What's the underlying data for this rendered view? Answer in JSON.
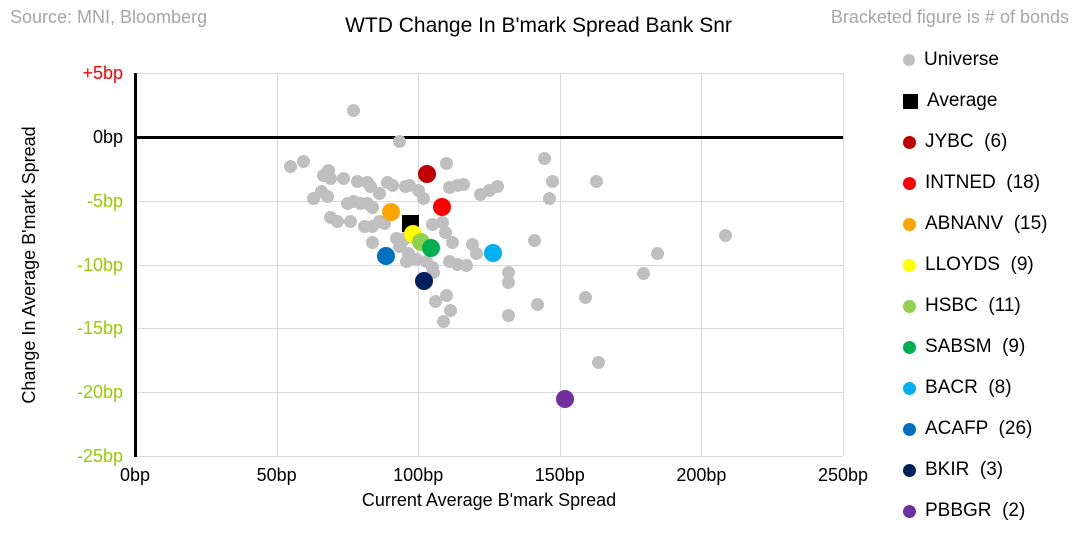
{
  "header": {
    "source": "Source: MNI, Bloomberg",
    "note": "Bracketed figure is # of bonds"
  },
  "chart_data": {
    "type": "scatter",
    "title": "WTD Change In B'mark Spread Bank Snr",
    "xlabel": "Current Average B'mark Spread",
    "ylabel": "Change In Average B'mark Spread",
    "xlim": [
      0,
      250
    ],
    "ylim": [
      -25,
      5
    ],
    "grid": true,
    "legend_position": "right",
    "x_ticks": [
      {
        "value": 0,
        "label": "0bp"
      },
      {
        "value": 50,
        "label": "50bp"
      },
      {
        "value": 100,
        "label": "100bp"
      },
      {
        "value": 150,
        "label": "150bp"
      },
      {
        "value": 200,
        "label": "200bp"
      },
      {
        "value": 250,
        "label": "250bp"
      }
    ],
    "y_ticks": [
      {
        "value": 5,
        "label": "+5bp",
        "color": "#FF0000"
      },
      {
        "value": 0,
        "label": "0bp",
        "color": "#000000"
      },
      {
        "value": -5,
        "label": "-5bp",
        "color": "#99CC00"
      },
      {
        "value": -10,
        "label": "-10bp",
        "color": "#99CC00"
      },
      {
        "value": -15,
        "label": "-15bp",
        "color": "#99CC00"
      },
      {
        "value": -20,
        "label": "-20bp",
        "color": "#99CC00"
      },
      {
        "value": -25,
        "label": "-25bp",
        "color": "#99CC00"
      }
    ],
    "units": "bp",
    "series": [
      {
        "name": "Universe",
        "label": "Universe",
        "color": "#BFBFBF",
        "marker": "circle",
        "size": 13,
        "legend_size": 12,
        "points": [
          [
            77,
            2.1
          ],
          [
            93.5,
            -0.4
          ],
          [
            55,
            -2.3
          ],
          [
            59.5,
            -1.9
          ],
          [
            66.5,
            -3.0
          ],
          [
            68.5,
            -2.6
          ],
          [
            69,
            -3.3
          ],
          [
            73.5,
            -3.3
          ],
          [
            63,
            -4.8
          ],
          [
            66,
            -4.3
          ],
          [
            68,
            -4.7
          ],
          [
            78.5,
            -3.5
          ],
          [
            82,
            -3.6
          ],
          [
            83,
            -3.9
          ],
          [
            86.5,
            -4.4
          ],
          [
            89,
            -3.6
          ],
          [
            91,
            -3.8
          ],
          [
            95.5,
            -3.9
          ],
          [
            97,
            -3.8
          ],
          [
            100,
            -4.2
          ],
          [
            75,
            -5.2
          ],
          [
            77,
            -5.1
          ],
          [
            79.5,
            -5.2
          ],
          [
            82,
            -5.2
          ],
          [
            84,
            -5.5
          ],
          [
            69,
            -6.3
          ],
          [
            71.5,
            -6.6
          ],
          [
            76,
            -6.6
          ],
          [
            81,
            -7.0
          ],
          [
            84,
            -7.0
          ],
          [
            86.5,
            -6.6
          ],
          [
            88,
            -6.8
          ],
          [
            84,
            -8.3
          ],
          [
            92.5,
            -8.0
          ],
          [
            93.5,
            -8.6
          ],
          [
            95.5,
            -8.0
          ],
          [
            98,
            -7.7
          ],
          [
            94,
            -8.3
          ],
          [
            96.5,
            -9.1
          ],
          [
            96,
            -9.8
          ],
          [
            99.5,
            -9.6
          ],
          [
            110,
            -2.1
          ],
          [
            111,
            -4.0
          ],
          [
            114,
            -3.8
          ],
          [
            116,
            -3.7
          ],
          [
            122,
            -4.5
          ],
          [
            125,
            -4.2
          ],
          [
            128,
            -3.9
          ],
          [
            102,
            -4.8
          ],
          [
            105,
            -6.9
          ],
          [
            108.5,
            -6.7
          ],
          [
            109.5,
            -7.5
          ],
          [
            112,
            -8.3
          ],
          [
            119,
            -8.4
          ],
          [
            120.5,
            -9.1
          ],
          [
            103,
            -9.8
          ],
          [
            105,
            -10.2
          ],
          [
            105.5,
            -10.6
          ],
          [
            111,
            -9.8
          ],
          [
            114,
            -10.0
          ],
          [
            117,
            -10.1
          ],
          [
            106,
            -12.9
          ],
          [
            110,
            -12.4
          ],
          [
            111.5,
            -13.6
          ],
          [
            109,
            -14.5
          ],
          [
            132,
            -10.6
          ],
          [
            132,
            -11.4
          ],
          [
            132,
            -14.0
          ],
          [
            142,
            -13.1
          ],
          [
            141,
            -8.1
          ],
          [
            144.5,
            -1.7
          ],
          [
            147.5,
            -3.5
          ],
          [
            146.5,
            -4.8
          ],
          [
            159,
            -12.6
          ],
          [
            163.5,
            -17.7
          ],
          [
            163,
            -3.5
          ],
          [
            179.5,
            -10.7
          ],
          [
            184.5,
            -9.1
          ],
          [
            208.5,
            -7.7
          ]
        ]
      },
      {
        "name": "Average",
        "label": "Average",
        "color": "#000000",
        "marker": "square",
        "size": 17,
        "legend_size": 15,
        "points": [
          [
            97.3,
            -6.8
          ]
        ]
      },
      {
        "name": "JYBC",
        "label": "JYBC  (6)",
        "bonds": 6,
        "color": "#C00000",
        "marker": "circle",
        "size": 18,
        "legend_size": 13,
        "points": [
          [
            103,
            -2.9
          ]
        ]
      },
      {
        "name": "INTNED",
        "label": "INTNED  (18)",
        "bonds": 18,
        "color": "#FF0000",
        "marker": "circle",
        "size": 18,
        "legend_size": 13,
        "points": [
          [
            108.5,
            -5.5
          ]
        ]
      },
      {
        "name": "ABNANV",
        "label": "ABNANV  (15)",
        "bonds": 15,
        "color": "#FFA500",
        "marker": "circle",
        "size": 18,
        "legend_size": 13,
        "points": [
          [
            90.5,
            -5.9
          ]
        ]
      },
      {
        "name": "LLOYDS",
        "label": "LLOYDS  (9)",
        "bonds": 9,
        "color": "#FFFF00",
        "marker": "circle",
        "size": 18,
        "legend_size": 13,
        "points": [
          [
            98,
            -7.6
          ]
        ]
      },
      {
        "name": "HSBC",
        "label": "HSBC  (11)",
        "bonds": 11,
        "color": "#92D050",
        "marker": "circle",
        "size": 18,
        "legend_size": 13,
        "points": [
          [
            101,
            -8.2
          ]
        ]
      },
      {
        "name": "SABSM",
        "label": "SABSM  (9)",
        "bonds": 9,
        "color": "#00B050",
        "marker": "circle",
        "size": 18,
        "legend_size": 13,
        "points": [
          [
            104.5,
            -8.7
          ]
        ]
      },
      {
        "name": "BACR",
        "label": "BACR  (8)",
        "bonds": 8,
        "color": "#00B0F0",
        "marker": "circle",
        "size": 18,
        "legend_size": 13,
        "points": [
          [
            126.5,
            -9.1
          ]
        ]
      },
      {
        "name": "ACAFP",
        "label": "ACAFP  (26)",
        "bonds": 26,
        "color": "#0070C0",
        "marker": "circle",
        "size": 18,
        "legend_size": 13,
        "points": [
          [
            88.5,
            -9.3
          ]
        ]
      },
      {
        "name": "BKIR",
        "label": "BKIR  (3)",
        "bonds": 3,
        "color": "#002060",
        "marker": "circle",
        "size": 18,
        "legend_size": 13,
        "points": [
          [
            102,
            -11.3
          ]
        ]
      },
      {
        "name": "PBBGR",
        "label": "PBBGR  (2)",
        "bonds": 2,
        "color": "#7030A0",
        "marker": "circle",
        "size": 18,
        "legend_size": 13,
        "points": [
          [
            152,
            -20.5
          ]
        ]
      }
    ],
    "style": {
      "gridline_color": "#D9D9D9",
      "zero_line_color": "#000000",
      "axis_color": "#000000",
      "muted_text_color": "#A6A6A6"
    }
  }
}
